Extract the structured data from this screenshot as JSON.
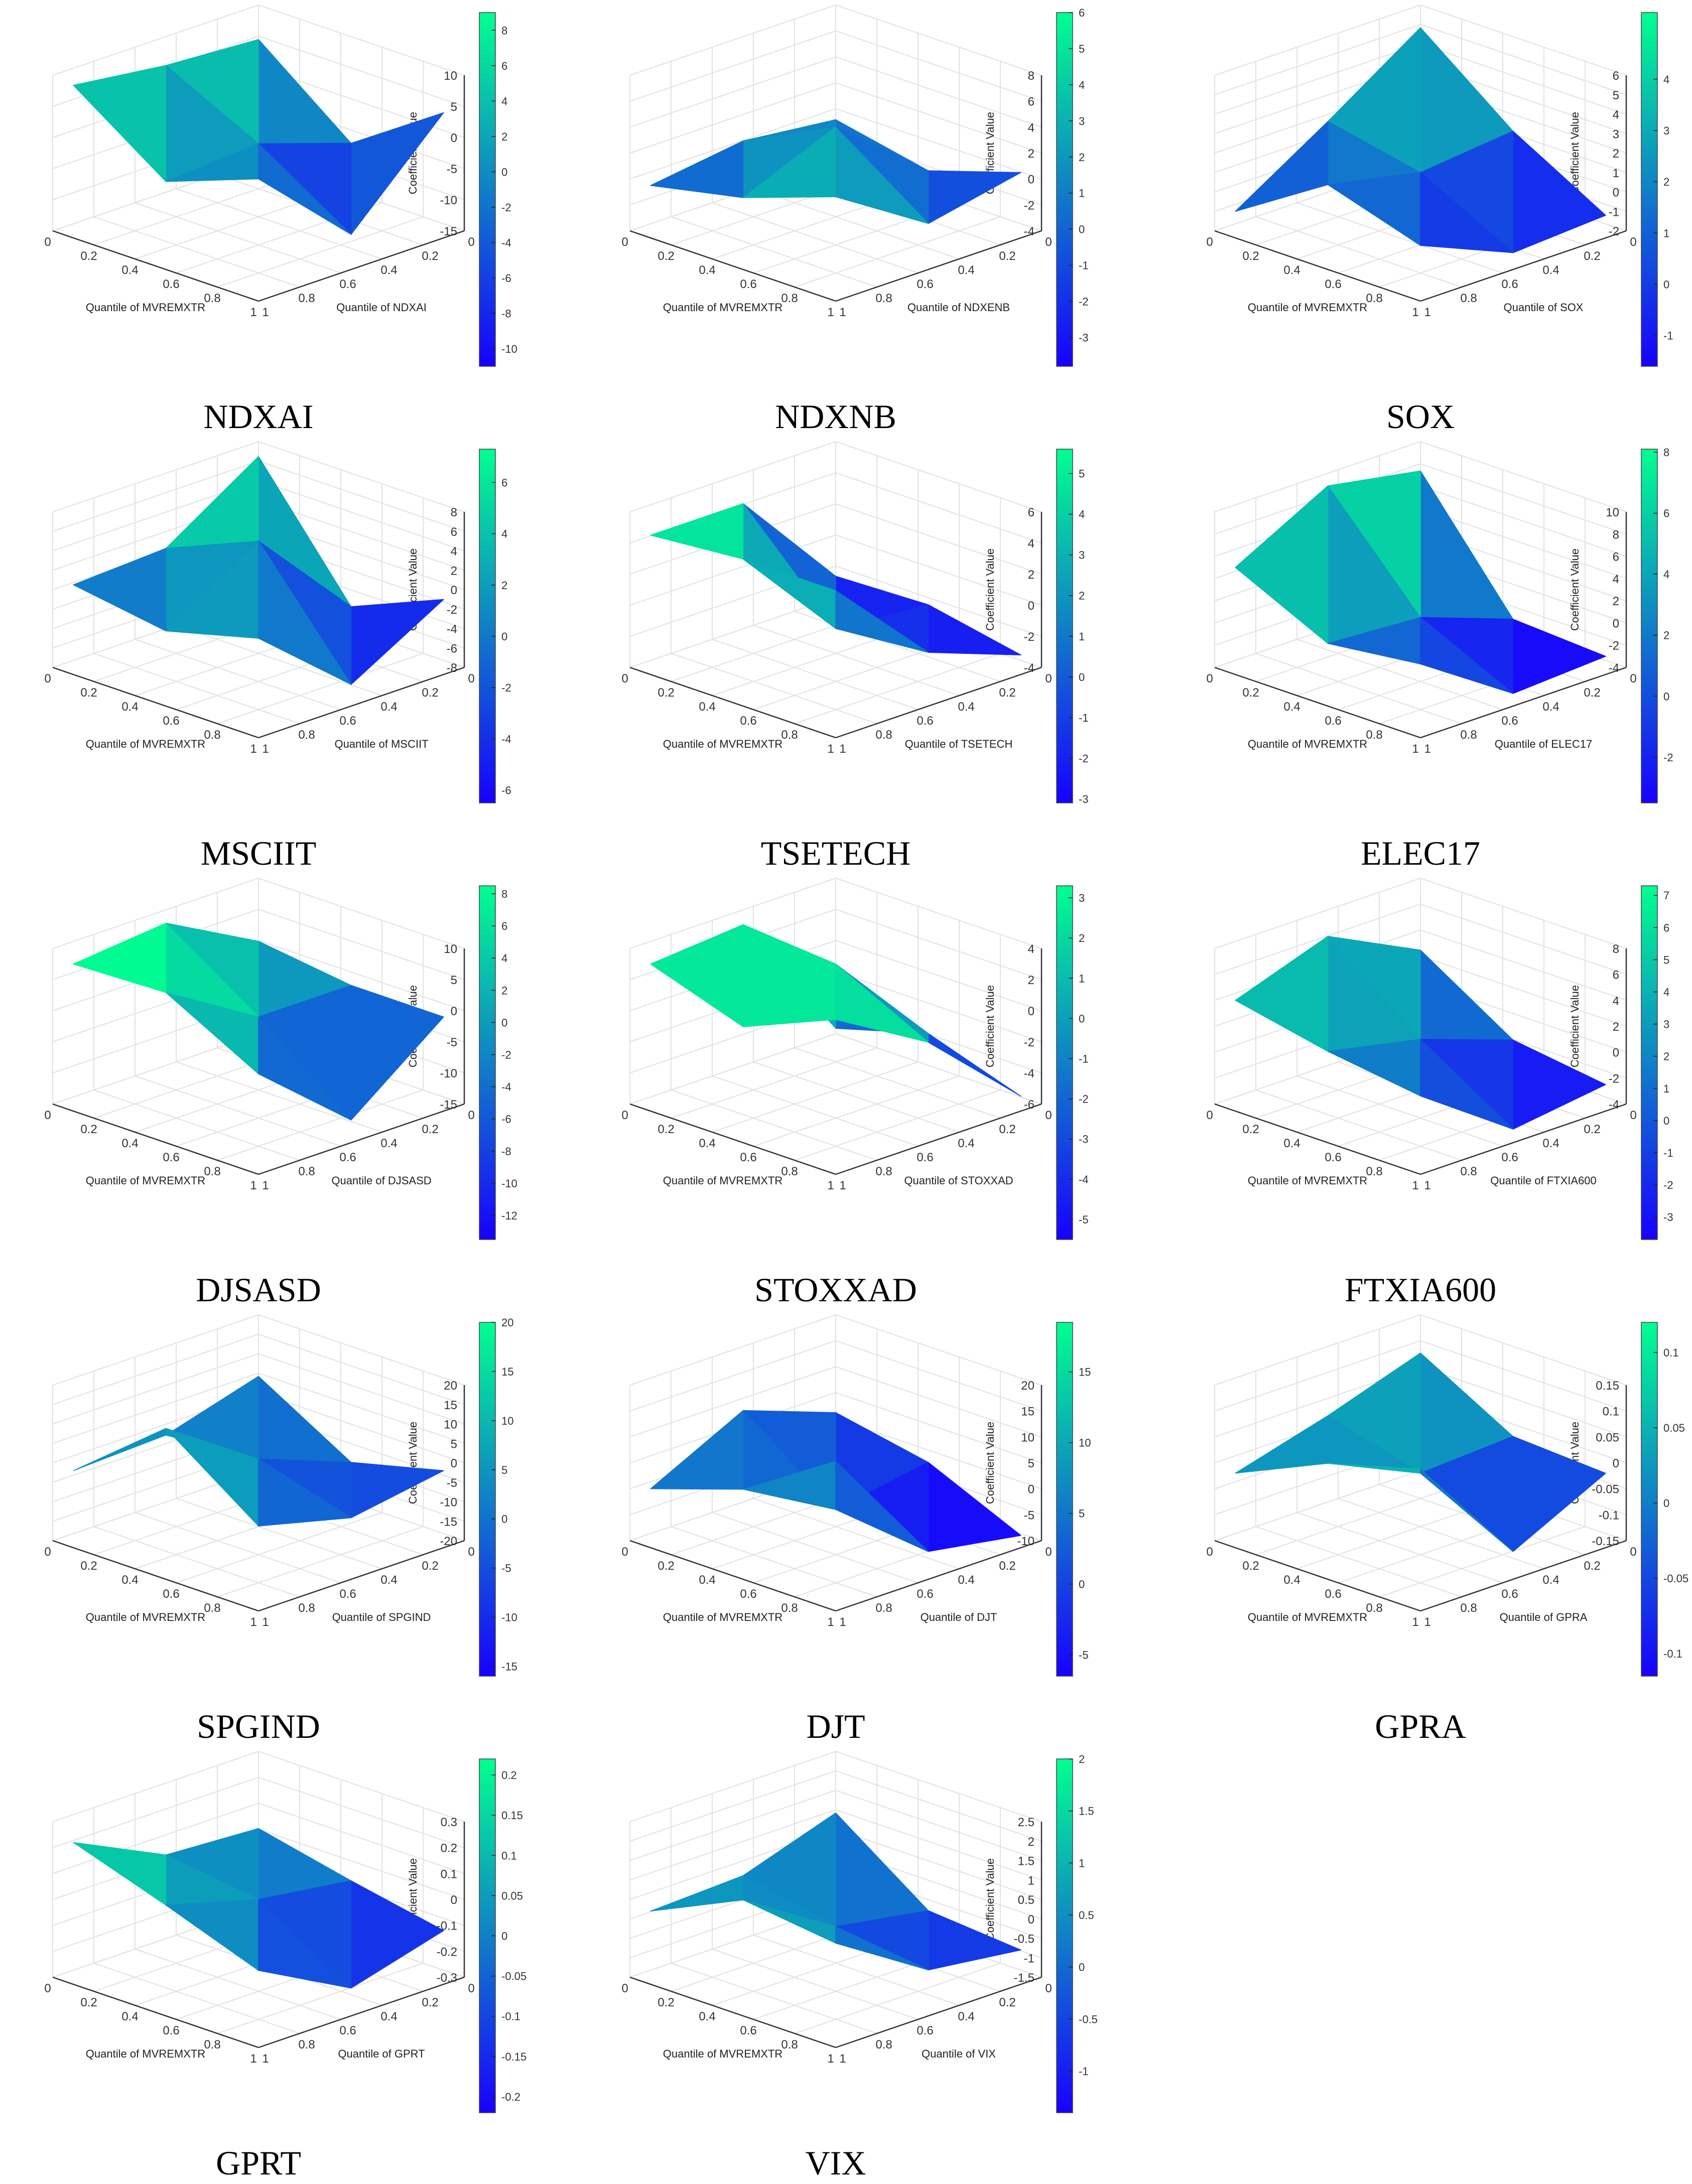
{
  "figure": {
    "axis_label_x": "Quantile of MVREMXTR",
    "z_label": "Coefficient Value"
  },
  "chart_data": [
    {
      "type": "surface3d",
      "name": "NDXAI",
      "title": "NDXAI",
      "xlabel": "Quantile of MVREMXTR",
      "ylabel": "Quantile of NDXAI",
      "zlabel": "Coefficient Value",
      "x": [
        0.05,
        0.5,
        0.95
      ],
      "y": [
        0.05,
        0.5,
        0.95
      ],
      "zlim": [
        -15,
        10
      ],
      "zticks": [
        10,
        5,
        0,
        -5,
        -10,
        -15
      ],
      "xticks": [
        0,
        0.2,
        0.4,
        0.6,
        0.8,
        1
      ],
      "yticks": [
        0,
        0.2,
        0.4,
        0.6,
        0.8,
        1
      ],
      "z": [
        [
          5.6,
          6.5,
          8.4
        ],
        [
          -6.0,
          -1.0,
          -2.0
        ],
        [
          4.0,
          -10.5,
          3.5
        ]
      ],
      "colorbar": {
        "min": -11,
        "max": 9,
        "ticks": [
          8,
          6,
          4,
          2,
          0,
          -2,
          -4,
          -6,
          -8,
          -10
        ]
      }
    },
    {
      "type": "surface3d",
      "name": "NDXNB",
      "title": "NDXNB",
      "xlabel": "Quantile of MVREMXTR",
      "ylabel": "Quantile of NDXENB",
      "zlabel": "Coefficient Value",
      "x": [
        0.05,
        0.5,
        0.95
      ],
      "y": [
        0.05,
        0.5,
        0.95
      ],
      "zlim": [
        -4,
        8
      ],
      "zticks": [
        8,
        6,
        4,
        2,
        0,
        -2,
        -4
      ],
      "xticks": [
        0,
        0.2,
        0.4,
        0.6,
        0.8,
        1
      ],
      "yticks": [
        0,
        0.2,
        0.4,
        0.6,
        0.8,
        1
      ],
      "z": [
        [
          -0.3,
          0.5,
          -0.5
        ],
        [
          -1.8,
          4.0,
          1.0
        ],
        [
          0.5,
          -1.0,
          3.5
        ]
      ],
      "colorbar": {
        "min": -3.8,
        "max": 6,
        "ticks": [
          6,
          5,
          4,
          3,
          2,
          1,
          0,
          -1,
          -2,
          -3
        ]
      }
    },
    {
      "type": "surface3d",
      "name": "SOX",
      "title": "SOX",
      "xlabel": "Quantile of MVREMXTR",
      "ylabel": "Quantile of SOX",
      "zlabel": "Coefficient Value",
      "x": [
        0.05,
        0.5,
        0.95
      ],
      "y": [
        0.05,
        0.5,
        0.95
      ],
      "zlim": [
        -2,
        6
      ],
      "zticks": [
        6,
        5,
        4,
        3,
        2,
        1,
        0,
        -1,
        -2
      ],
      "xticks": [
        0,
        0.2,
        0.4,
        0.6,
        0.8,
        1
      ],
      "yticks": [
        0,
        0.2,
        0.4,
        0.6,
        0.8,
        1
      ],
      "z": [
        [
          5.2,
          2.0,
          -1.0
        ],
        [
          1.5,
          1.0,
          2.0
        ],
        [
          -1.2,
          -1.5,
          0.5
        ]
      ],
      "colorbar": {
        "min": -1.6,
        "max": 5.3,
        "ticks": [
          4,
          3,
          2,
          1,
          0,
          -1
        ]
      }
    },
    {
      "type": "surface3d",
      "name": "MSCIIT",
      "title": "MSCIIT",
      "xlabel": "Quantile of MVREMXTR",
      "ylabel": "Quantile of MSCIIT",
      "zlabel": "Coefficient Value",
      "x": [
        0.05,
        0.5,
        0.95
      ],
      "y": [
        0.05,
        0.5,
        0.95
      ],
      "zlim": [
        -8,
        8
      ],
      "zticks": [
        8,
        6,
        4,
        2,
        0,
        -2,
        -4,
        -6,
        -8
      ],
      "xticks": [
        0,
        0.2,
        0.4,
        0.6,
        0.8,
        1
      ],
      "yticks": [
        0,
        0.2,
        0.4,
        0.6,
        0.8,
        1
      ],
      "z": [
        [
          7.2,
          1.0,
          0.5
        ],
        [
          -5.0,
          5.0,
          -1.0
        ],
        [
          -1.0,
          -6.5,
          1.5
        ]
      ],
      "colorbar": {
        "min": -6.5,
        "max": 7.3,
        "ticks": [
          6,
          4,
          2,
          0,
          -2,
          -4,
          -6
        ]
      }
    },
    {
      "type": "surface3d",
      "name": "TSETECH",
      "title": "TSETECH",
      "xlabel": "Quantile of MVREMXTR",
      "ylabel": "Quantile of TSETECH",
      "zlabel": "Coefficient Value",
      "x": [
        0.05,
        0.5,
        0.95
      ],
      "y": [
        0.05,
        0.5,
        0.95
      ],
      "zlim": [
        -4,
        6
      ],
      "zticks": [
        6,
        4,
        2,
        0,
        -2,
        -4
      ],
      "xticks": [
        0,
        0.2,
        0.4,
        0.6,
        0.8,
        1
      ],
      "yticks": [
        0,
        0.2,
        0.4,
        0.6,
        0.8,
        1
      ],
      "z": [
        [
          -2.2,
          4.5,
          4.5
        ],
        [
          -2.0,
          -1.5,
          5.0
        ],
        [
          -3.2,
          -1.0,
          5.0
        ]
      ],
      "colorbar": {
        "min": -3.1,
        "max": 5.6,
        "ticks": [
          5,
          4,
          3,
          2,
          1,
          0,
          -1,
          -2,
          -3
        ]
      }
    },
    {
      "type": "surface3d",
      "name": "ELEC17",
      "title": "ELEC17",
      "xlabel": "Quantile of MVREMXTR",
      "ylabel": "Quantile of ELEC17",
      "zlabel": "Coefficient Value",
      "x": [
        0.05,
        0.5,
        0.95
      ],
      "y": [
        0.05,
        0.5,
        0.95
      ],
      "zlim": [
        -4,
        10
      ],
      "zticks": [
        10,
        8,
        6,
        4,
        2,
        0,
        -2,
        -4
      ],
      "xticks": [
        0,
        0.2,
        0.4,
        0.6,
        0.8,
        1
      ],
      "yticks": [
        0,
        0.2,
        0.4,
        0.6,
        0.8,
        1
      ],
      "z": [
        [
          8.0,
          9.5,
          5.0
        ],
        [
          -2.5,
          0.5,
          1.0
        ],
        [
          -3.0,
          -3.5,
          2.0
        ]
      ],
      "colorbar": {
        "min": -3.5,
        "max": 8.1,
        "ticks": [
          8,
          6,
          4,
          2,
          0,
          -2
        ]
      }
    },
    {
      "type": "surface3d",
      "name": "DJSASD",
      "title": "DJSASD",
      "xlabel": "Quantile of MVREMXTR",
      "ylabel": "Quantile of DJSASD",
      "zlabel": "Coefficient Value",
      "x": [
        0.05,
        0.5,
        0.95
      ],
      "y": [
        0.05,
        0.5,
        0.95
      ],
      "zlim": [
        -15,
        10
      ],
      "zticks": [
        10,
        5,
        0,
        -5,
        -10,
        -15
      ],
      "xticks": [
        0,
        0.2,
        0.4,
        0.6,
        0.8,
        1
      ],
      "yticks": [
        0,
        0.2,
        0.4,
        0.6,
        0.8,
        1
      ],
      "z": [
        [
          1.0,
          9.0,
          7.5
        ],
        [
          -1.0,
          -1.0,
          8.0
        ],
        [
          -1.0,
          -12.5,
          0.0
        ]
      ],
      "colorbar": {
        "min": -13.5,
        "max": 8.5,
        "ticks": [
          8,
          6,
          4,
          2,
          0,
          -2,
          -4,
          -6,
          -8,
          -10,
          -12
        ]
      }
    },
    {
      "type": "surface3d",
      "name": "STOXXAD",
      "title": "STOXXAD",
      "xlabel": "Quantile of MVREMXTR",
      "ylabel": "Quantile of STOXXAD",
      "zlabel": "Coefficient Value",
      "x": [
        0.05,
        0.5,
        0.95
      ],
      "y": [
        0.05,
        0.5,
        0.95
      ],
      "zlim": [
        -6,
        4
      ],
      "zticks": [
        4,
        2,
        0,
        -2,
        -4,
        -6
      ],
      "xticks": [
        0,
        0.2,
        0.4,
        0.6,
        0.8,
        1
      ],
      "yticks": [
        0,
        0.2,
        0.4,
        0.6,
        0.8,
        1
      ],
      "z": [
        [
          -5.2,
          3.5,
          3.0
        ],
        [
          -3.5,
          3.0,
          1.0
        ],
        [
          -5.5,
          0.0,
          3.5
        ]
      ],
      "colorbar": {
        "min": -5.5,
        "max": 3.3,
        "ticks": [
          3,
          2,
          1,
          0,
          -1,
          -2,
          -3,
          -4,
          -5
        ]
      }
    },
    {
      "type": "surface3d",
      "name": "FTXIA600",
      "title": "FTXIA600",
      "xlabel": "Quantile of MVREMXTR",
      "ylabel": "Quantile of FTXIA600",
      "zlabel": "Coefficient Value",
      "x": [
        0.05,
        0.5,
        0.95
      ],
      "y": [
        0.05,
        0.5,
        0.95
      ],
      "zlim": [
        -4,
        8
      ],
      "zticks": [
        8,
        6,
        4,
        2,
        0,
        -2,
        -4
      ],
      "xticks": [
        0,
        0.2,
        0.4,
        0.6,
        0.8,
        1
      ],
      "yticks": [
        0,
        0.2,
        0.4,
        0.6,
        0.8,
        1
      ],
      "z": [
        [
          3.0,
          6.5,
          4.0
        ],
        [
          -1.5,
          1.0,
          2.5
        ],
        [
          -2.5,
          -3.5,
          1.5
        ]
      ],
      "colorbar": {
        "min": -3.7,
        "max": 7.3,
        "ticks": [
          7,
          6,
          5,
          4,
          3,
          2,
          1,
          0,
          -1,
          -2,
          -3
        ]
      }
    },
    {
      "type": "surface3d",
      "name": "SPGIND",
      "title": "SPGIND",
      "xlabel": "Quantile of MVREMXTR",
      "ylabel": "Quantile of SPGIND",
      "zlabel": "Coefficient Value",
      "x": [
        0.05,
        0.5,
        0.95
      ],
      "y": [
        0.05,
        0.5,
        0.95
      ],
      "zlim": [
        -20,
        20
      ],
      "zticks": [
        20,
        15,
        10,
        5,
        0,
        -5,
        -10,
        -15,
        -20
      ],
      "xticks": [
        0,
        0.2,
        0.4,
        0.6,
        0.8,
        1
      ],
      "yticks": [
        0,
        0.2,
        0.4,
        0.6,
        0.8,
        1
      ],
      "z": [
        [
          6.0,
          -1.0,
          -2.0
        ],
        [
          -8.0,
          1.0,
          17.0
        ],
        [
          -2.0,
          -6.0,
          0.0
        ]
      ],
      "colorbar": {
        "min": -16,
        "max": 20,
        "ticks": [
          20,
          15,
          10,
          5,
          0,
          -5,
          -10,
          -15
        ]
      }
    },
    {
      "type": "surface3d",
      "name": "DJT",
      "title": "DJT",
      "xlabel": "Quantile of MVREMXTR",
      "ylabel": "Quantile of DJT",
      "zlabel": "Coefficient Value",
      "x": [
        0.05,
        0.5,
        0.95
      ],
      "y": [
        0.05,
        0.5,
        0.95
      ],
      "zlim": [
        -10,
        20
      ],
      "zticks": [
        20,
        15,
        10,
        5,
        0,
        -5,
        -10
      ],
      "xticks": [
        0,
        0.2,
        0.4,
        0.6,
        0.8,
        1
      ],
      "yticks": [
        0,
        0.2,
        0.4,
        0.6,
        0.8,
        1
      ],
      "z": [
        [
          2.5,
          9.0,
          0.0
        ],
        [
          -1.0,
          -4.0,
          6.0
        ],
        [
          -9.0,
          -6.0,
          17.5
        ]
      ],
      "colorbar": {
        "min": -6.5,
        "max": 18.5,
        "ticks": [
          15,
          10,
          5,
          0,
          -5
        ]
      }
    },
    {
      "type": "surface3d",
      "name": "GPRA",
      "title": "GPRA",
      "xlabel": "Quantile of MVREMXTR",
      "ylabel": "Quantile of GPRA",
      "zlabel": "Coefficient Value",
      "x": [
        0.05,
        0.5,
        0.95
      ],
      "y": [
        0.05,
        0.5,
        0.95
      ],
      "zlim": [
        -0.15,
        0.15
      ],
      "zticks": [
        0.15,
        0.1,
        0.05,
        0,
        -0.05,
        -0.1,
        -0.15
      ],
      "xticks": [
        0,
        0.2,
        0.4,
        0.6,
        0.8,
        1
      ],
      "yticks": [
        0,
        0.2,
        0.4,
        0.6,
        0.8,
        1
      ],
      "z": [
        [
          0.09,
          0.03,
          -0.02
        ],
        [
          -0.01,
          -0.02,
          0.06
        ],
        [
          -0.02,
          -0.11,
          0.11
        ]
      ],
      "colorbar": {
        "min": -0.115,
        "max": 0.12,
        "ticks": [
          0.1,
          0.05,
          0,
          -0.05,
          -0.1
        ]
      }
    },
    {
      "type": "surface3d",
      "name": "GPRT",
      "title": "GPRT",
      "xlabel": "Quantile of MVREMXTR",
      "ylabel": "Quantile of GPRT",
      "zlabel": "Coefficient Value",
      "x": [
        0.05,
        0.5,
        0.95
      ],
      "y": [
        0.05,
        0.5,
        0.95
      ],
      "zlim": [
        -0.3,
        0.3
      ],
      "zticks": [
        0.3,
        0.2,
        0.1,
        0,
        -0.1,
        -0.2,
        -0.3
      ],
      "xticks": [
        0,
        0.2,
        0.4,
        0.6,
        0.8,
        1
      ],
      "yticks": [
        0,
        0.2,
        0.4,
        0.6,
        0.8,
        1
      ],
      "z": [
        [
          0.03,
          0.05,
          0.22
        ],
        [
          -0.05,
          0.0,
          0.1
        ],
        [
          -0.12,
          -0.22,
          -0.03
        ]
      ],
      "colorbar": {
        "min": -0.22,
        "max": 0.22,
        "ticks": [
          0.2,
          0.15,
          0.1,
          0.05,
          0,
          -0.05,
          -0.1,
          -0.15,
          -0.2
        ]
      }
    },
    {
      "type": "surface3d",
      "name": "VIX",
      "title": "VIX",
      "xlabel": "Quantile of MVREMXTR",
      "ylabel": "Quantile of VIX",
      "zlabel": "Coefficient Value",
      "x": [
        0.05,
        0.5,
        0.95
      ],
      "y": [
        0.05,
        0.5,
        0.95
      ],
      "zlim": [
        -1.5,
        2.5
      ],
      "zticks": [
        2.5,
        2,
        1.5,
        1,
        0.5,
        0,
        -0.5,
        -1,
        -1.5
      ],
      "xticks": [
        0,
        0.2,
        0.4,
        0.6,
        0.8,
        1
      ],
      "yticks": [
        0,
        0.2,
        0.4,
        0.6,
        0.8,
        1
      ],
      "z": [
        [
          1.1,
          0.3,
          0.2
        ],
        [
          -0.6,
          -0.2,
          1.3
        ],
        [
          -0.8,
          -0.5,
          1.0
        ]
      ],
      "colorbar": {
        "min": -1.4,
        "max": 2.0,
        "ticks": [
          2,
          1.5,
          1,
          0.5,
          0,
          -0.5,
          -1
        ]
      }
    }
  ]
}
